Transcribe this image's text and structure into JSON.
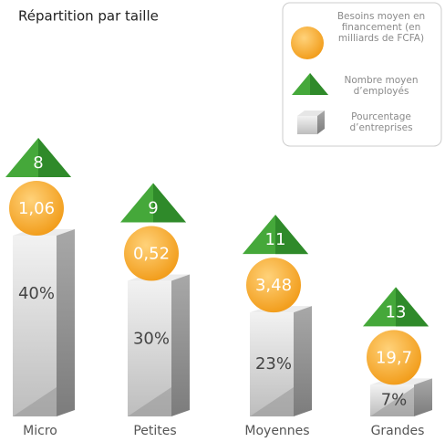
{
  "chart_data": {
    "type": "bar",
    "title": "Répartition par taille",
    "categories": [
      "Micro",
      "Petites",
      "Moyennes",
      "Grandes"
    ],
    "series": [
      {
        "name": "Besoins moyen en financement (en milliards de FCFA)",
        "color": "#f5a623",
        "values": [
          1.06,
          0.52,
          3.48,
          19.7
        ],
        "value_labels": [
          "1,06",
          "0,52",
          "3,48",
          "19,7"
        ]
      },
      {
        "name": "Nombre moyen d’employés",
        "color": "#45a83a",
        "values": [
          8,
          9,
          11,
          13
        ]
      },
      {
        "name": "Pourcentage d’entreprises",
        "color": "#b8b8b8",
        "values": [
          40,
          30,
          23,
          7
        ],
        "value_labels": [
          "40%",
          "30%",
          "23%",
          "7%"
        ]
      }
    ]
  }
}
